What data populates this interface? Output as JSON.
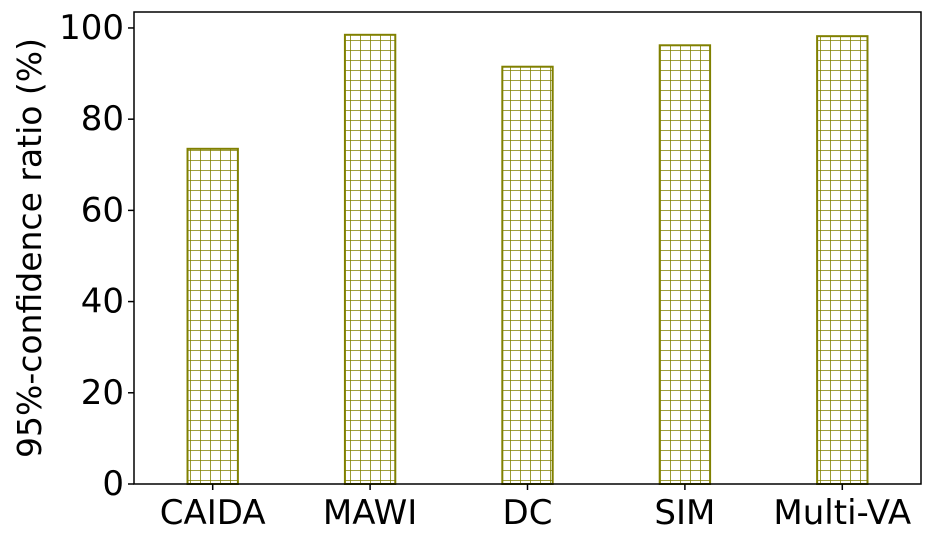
{
  "chart_data": {
    "type": "bar",
    "categories": [
      "CAIDA",
      "MAWI",
      "DC",
      "SIM",
      "Multi-VA"
    ],
    "values": [
      73.5,
      98.5,
      91.5,
      96.2,
      98.2
    ],
    "title": "",
    "xlabel": "",
    "ylabel": "95%-confidence ratio (%)",
    "ylim": [
      0,
      103.5
    ],
    "yticks": [
      0,
      20,
      40,
      60,
      80,
      100
    ],
    "grid": false,
    "legend": "none",
    "bar_color": "#808000",
    "bar_fill": "#ffffff",
    "bar_hatch": "grid"
  }
}
